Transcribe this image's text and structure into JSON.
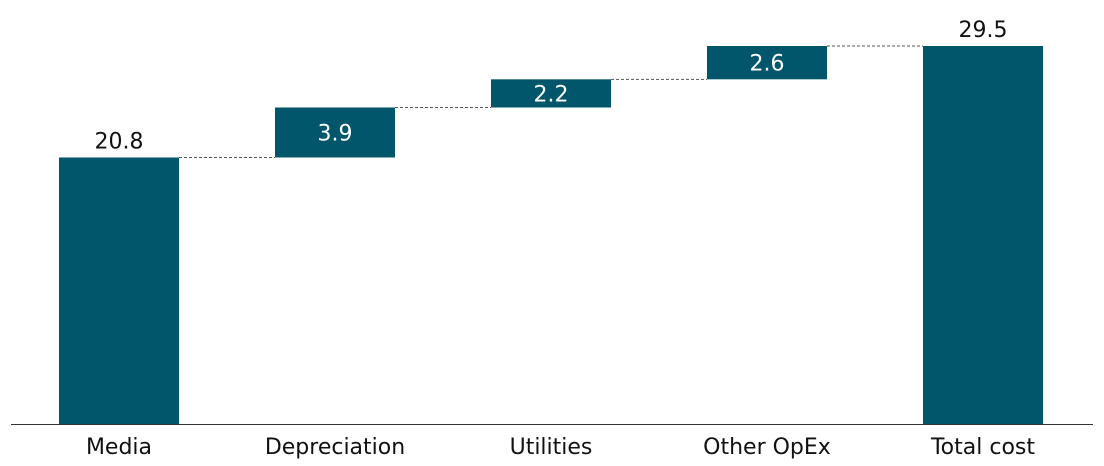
{
  "chart_data": {
    "type": "bar",
    "subtype": "waterfall",
    "categories": [
      "Media",
      "Depreciation",
      "Utilities",
      "Other OpEx",
      "Total cost"
    ],
    "values": [
      20.8,
      3.9,
      2.2,
      2.6,
      29.5
    ],
    "kinds": [
      "total",
      "increase",
      "increase",
      "increase",
      "total"
    ],
    "data_labels": [
      "20.8",
      "3.9",
      "2.2",
      "2.6",
      "29.5"
    ],
    "title": "",
    "xlabel": "",
    "ylabel": "",
    "ylim": [
      0,
      29.5
    ],
    "grid": false,
    "legend": "none",
    "connectors": true
  },
  "colors": {
    "bar": "#02566b",
    "label_inside": "#ffffff",
    "label_outside": "#111111",
    "connector": "#555555",
    "axis": "#333333"
  }
}
